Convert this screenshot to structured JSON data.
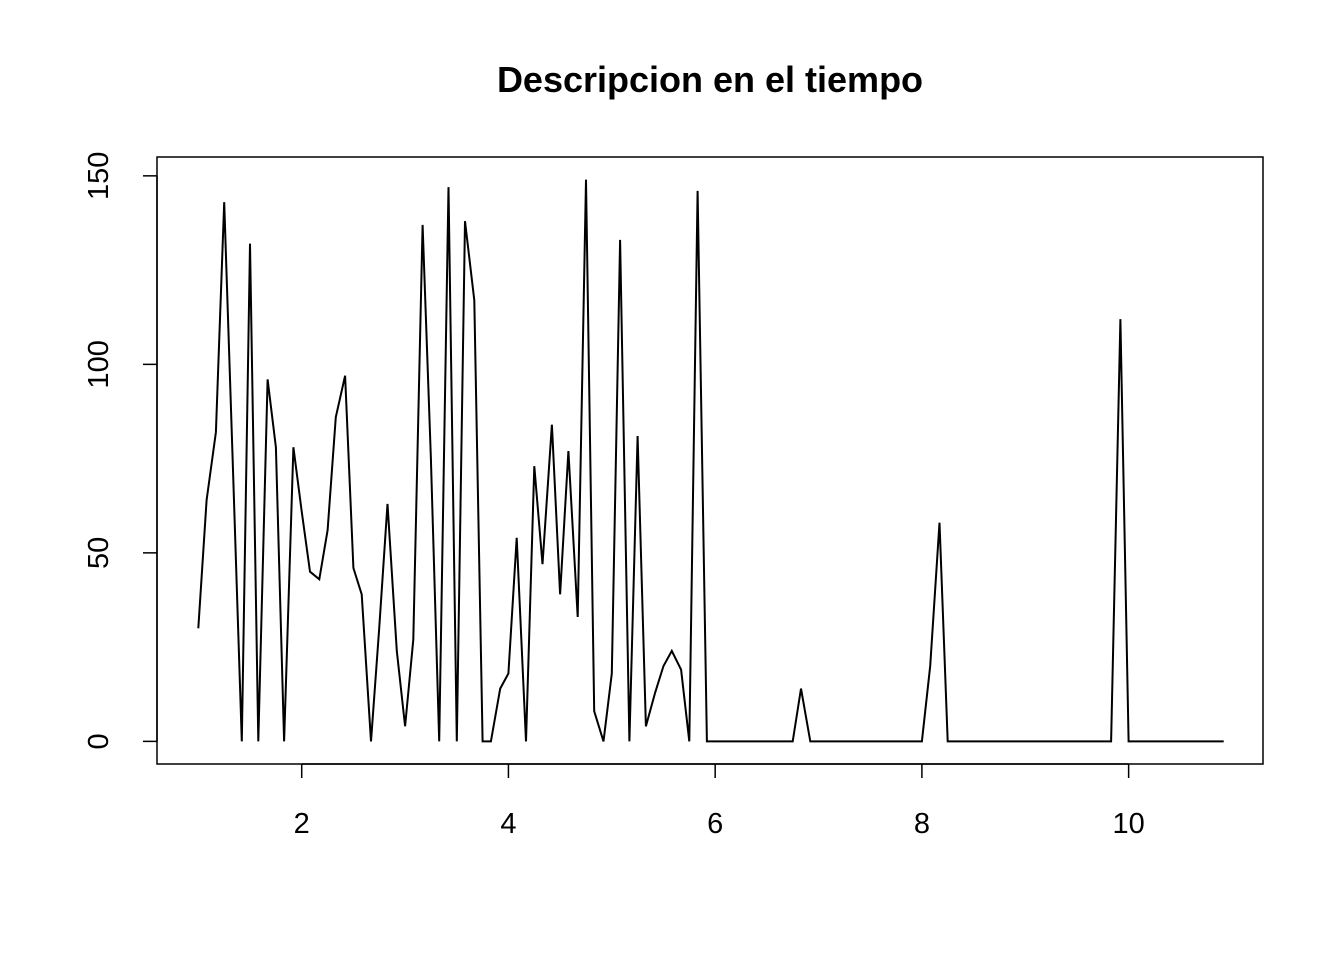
{
  "chart_data": {
    "type": "line",
    "title": "Descripcion en el tiempo",
    "xlabel": "",
    "ylabel": "",
    "xlim": [
      0.6,
      11.3
    ],
    "ylim": [
      -6,
      155
    ],
    "x_ticks": [
      2,
      4,
      6,
      8,
      10
    ],
    "y_ticks": [
      0,
      50,
      100,
      150
    ],
    "x_tick_labels": [
      "2",
      "4",
      "6",
      "8",
      "10"
    ],
    "y_tick_labels": [
      "0",
      "50",
      "100",
      "150"
    ],
    "grid": false,
    "line_color": "#000000",
    "series": [
      {
        "x": [
          1.0,
          1.08,
          1.17,
          1.25,
          1.33,
          1.42,
          1.5,
          1.58,
          1.67,
          1.75,
          1.83,
          1.92,
          2.0,
          2.08,
          2.17,
          2.25,
          2.33,
          2.42,
          2.5,
          2.58,
          2.67,
          2.75,
          2.83,
          2.92,
          3.0,
          3.08,
          3.17,
          3.25,
          3.33,
          3.42,
          3.5,
          3.58,
          3.67,
          3.75,
          3.83,
          3.92,
          4.0,
          4.08,
          4.17,
          4.25,
          4.33,
          4.42,
          4.5,
          4.58,
          4.67,
          4.75,
          4.83,
          4.92,
          5.0,
          5.08,
          5.17,
          5.25,
          5.33,
          5.42,
          5.5,
          5.58,
          5.67,
          5.75,
          5.83,
          5.92,
          6.0,
          6.08,
          6.17,
          6.25,
          6.33,
          6.42,
          6.5,
          6.58,
          6.67,
          6.75,
          6.83,
          6.92,
          7.0,
          7.08,
          7.17,
          7.25,
          7.33,
          7.42,
          7.5,
          7.58,
          7.67,
          7.75,
          7.83,
          7.92,
          8.0,
          8.08,
          8.17,
          8.25,
          8.33,
          8.42,
          8.5,
          8.58,
          8.67,
          8.75,
          8.83,
          8.92,
          9.0,
          9.08,
          9.17,
          9.25,
          9.33,
          9.42,
          9.5,
          9.58,
          9.67,
          9.75,
          9.83,
          9.92,
          10.0,
          10.08,
          10.17,
          10.25,
          10.33,
          10.42,
          10.5,
          10.58,
          10.67,
          10.75,
          10.83,
          10.92
        ],
        "values": [
          30,
          64,
          82,
          143,
          76,
          0,
          132,
          0,
          96,
          78,
          0,
          78,
          61,
          45,
          43,
          56,
          86,
          97,
          46,
          39,
          0,
          30,
          63,
          24,
          4,
          27,
          137,
          75,
          0,
          147,
          0,
          138,
          117,
          0,
          0,
          14,
          18,
          54,
          0,
          73,
          47,
          84,
          39,
          77,
          33,
          149,
          8,
          0,
          18,
          133,
          0,
          81,
          4,
          13,
          20,
          24,
          19,
          0,
          146,
          0,
          0,
          0,
          0,
          0,
          0,
          0,
          0,
          0,
          0,
          0,
          14,
          0,
          0,
          0,
          0,
          0,
          0,
          0,
          0,
          0,
          0,
          0,
          0,
          0,
          0,
          20,
          58,
          0,
          0,
          0,
          0,
          0,
          0,
          0,
          0,
          0,
          0,
          0,
          0,
          0,
          0,
          0,
          0,
          0,
          0,
          0,
          0,
          112,
          0,
          0,
          0,
          0,
          0,
          0,
          0,
          0,
          0,
          0,
          0,
          0
        ]
      }
    ]
  }
}
